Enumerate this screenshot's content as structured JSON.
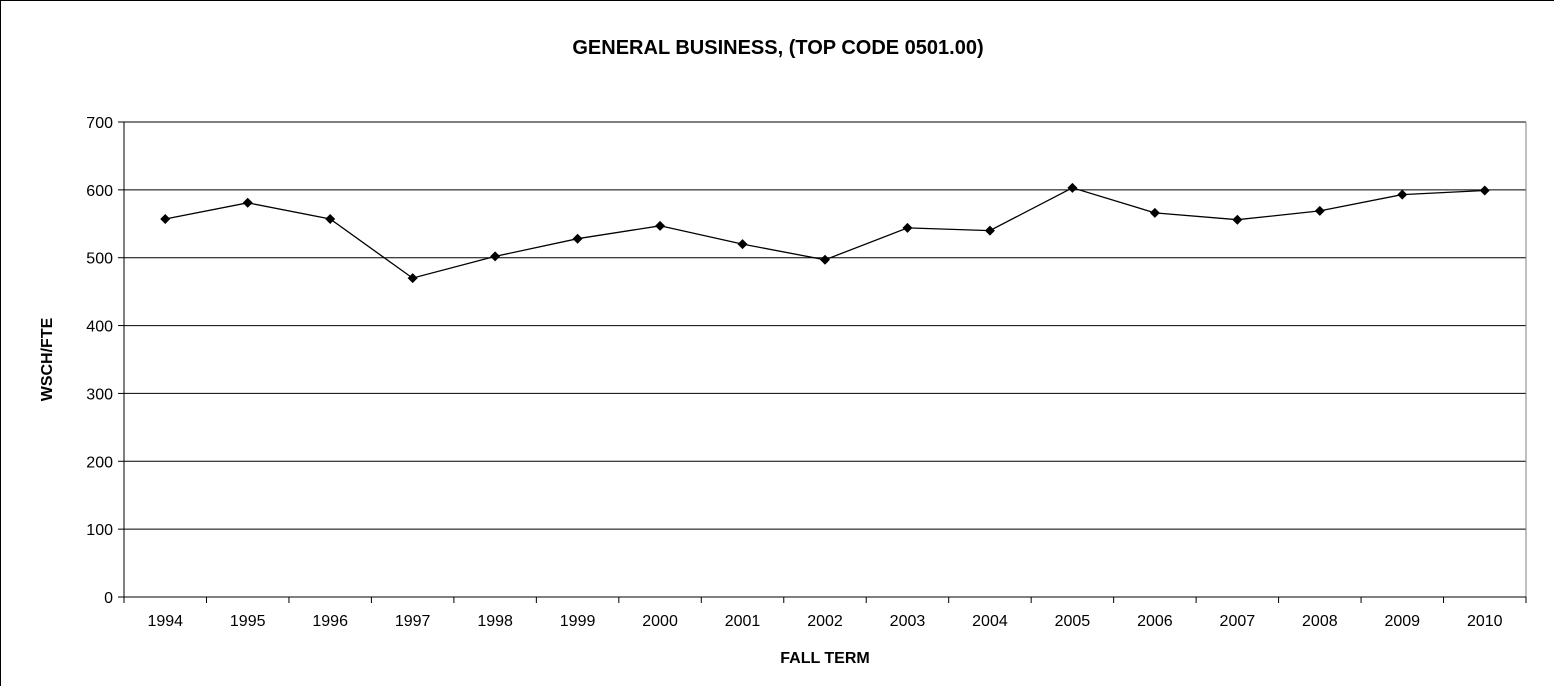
{
  "chart_data": {
    "type": "line",
    "title": "GENERAL BUSINESS, (TOP CODE 0501.00)",
    "xlabel": "FALL TERM",
    "ylabel": "WSCH/FTE",
    "ylim": [
      0,
      700
    ],
    "yticks": [
      0,
      100,
      200,
      300,
      400,
      500,
      600,
      700
    ],
    "grid": true,
    "categories": [
      "1994",
      "1995",
      "1996",
      "1997",
      "1998",
      "1999",
      "2000",
      "2001",
      "2002",
      "2003",
      "2004",
      "2005",
      "2006",
      "2007",
      "2008",
      "2009",
      "2010"
    ],
    "series": [
      {
        "values": [
          557,
          581,
          557,
          470,
          502,
          528,
          547,
          520,
          497,
          544,
          540,
          603,
          566,
          556,
          569,
          593,
          599
        ],
        "color": "#000000",
        "marker": "diamond"
      }
    ]
  }
}
